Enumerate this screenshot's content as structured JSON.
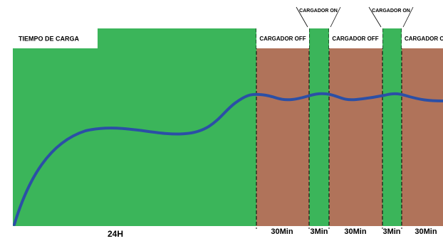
{
  "header": {
    "title": "TIEMPO DE CARGA"
  },
  "phases": [
    {
      "duration": "24H"
    },
    {
      "label": "CARGADOR OFF",
      "duration": "30Min"
    },
    {
      "label": "CARGADOR ON",
      "duration": "3Min"
    },
    {
      "label": "CARGADOR OFF",
      "duration": "30Min"
    },
    {
      "label": "CARGADOR ON",
      "duration": "3Min"
    },
    {
      "label": "CARGADOR OFF",
      "duration": "30Min"
    }
  ]
}
